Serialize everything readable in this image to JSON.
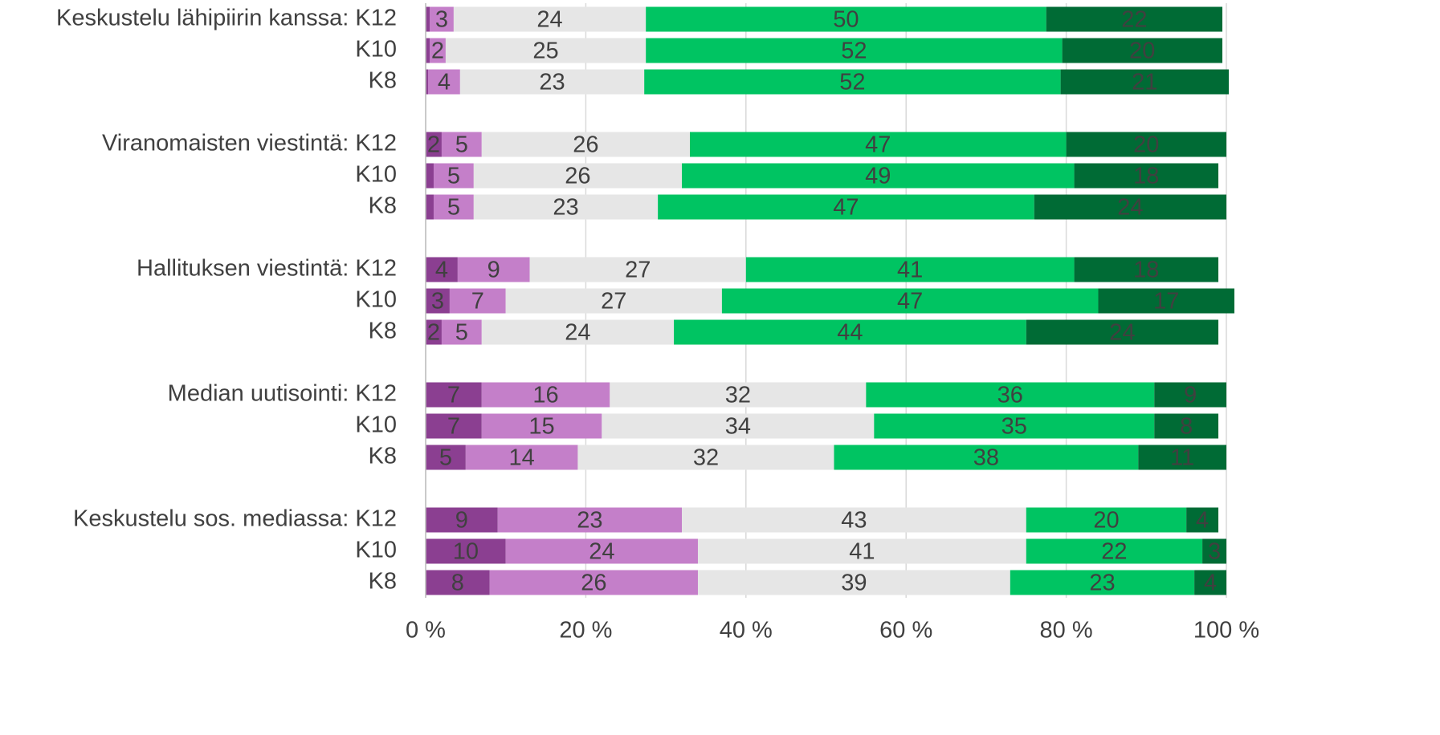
{
  "chart_data": {
    "type": "stacked-barh",
    "categories": [
      "Keskustelu lähipiirin kanssa: K12",
      "K10",
      "K8",
      "Viranomaisten viestintä: K12",
      "K10",
      "K8",
      "Hallituksen viestintä: K12",
      "K10",
      "K8",
      "Median uutisointi: K12",
      "K10",
      "K8",
      "Keskustelu sos. mediassa: K12",
      "K10",
      "K8"
    ],
    "series": [
      {
        "color": "#8b3f91",
        "values": [
          0.5,
          0.5,
          0.3,
          2,
          1,
          1,
          4,
          3,
          2,
          7,
          7,
          5,
          9,
          10,
          8
        ],
        "value_labels": [
          null,
          null,
          null,
          "2",
          null,
          null,
          "4",
          "3",
          "2",
          "7",
          "7",
          "5",
          "9",
          "10",
          "8"
        ]
      },
      {
        "color": "#c47fc9",
        "values": [
          3,
          2,
          4,
          5,
          5,
          5,
          9,
          7,
          5,
          16,
          15,
          14,
          23,
          24,
          26
        ],
        "value_labels": [
          "3",
          "2",
          "4",
          "5",
          "5",
          "5",
          "9",
          "7",
          "5",
          "16",
          "15",
          "14",
          "23",
          "24",
          "26"
        ]
      },
      {
        "color": "#e6e6e6",
        "values": [
          24,
          25,
          23,
          26,
          26,
          23,
          27,
          27,
          24,
          32,
          34,
          32,
          43,
          41,
          39
        ],
        "value_labels": [
          "24",
          "25",
          "23",
          "26",
          "26",
          "23",
          "27",
          "27",
          "24",
          "32",
          "34",
          "32",
          "43",
          "41",
          "39"
        ]
      },
      {
        "color": "#00c462",
        "values": [
          50,
          52,
          52,
          47,
          49,
          47,
          41,
          47,
          44,
          36,
          35,
          38,
          20,
          22,
          23
        ],
        "value_labels": [
          "50",
          "52",
          "52",
          "47",
          "49",
          "47",
          "41",
          "47",
          "44",
          "36",
          "35",
          "38",
          "20",
          "22",
          "23"
        ]
      },
      {
        "color": "#006b35",
        "values": [
          22,
          20,
          21,
          20,
          18,
          24,
          18,
          17,
          24,
          9,
          8,
          11,
          4,
          3,
          4
        ],
        "value_labels": [
          "22",
          "20",
          "21",
          "20",
          "18",
          "24",
          "18",
          "17",
          "24",
          "9",
          "8",
          "11",
          "4",
          "3",
          "4"
        ]
      }
    ],
    "xlim": [
      0,
      100
    ],
    "xticks": [
      {
        "value": 0,
        "label": "0 %"
      },
      {
        "value": 20,
        "label": "20 %"
      },
      {
        "value": 40,
        "label": "40 %"
      },
      {
        "value": 60,
        "label": "60 %"
      },
      {
        "value": 80,
        "label": "80 %"
      },
      {
        "value": 100,
        "label": "100 %"
      }
    ],
    "grid": true
  }
}
